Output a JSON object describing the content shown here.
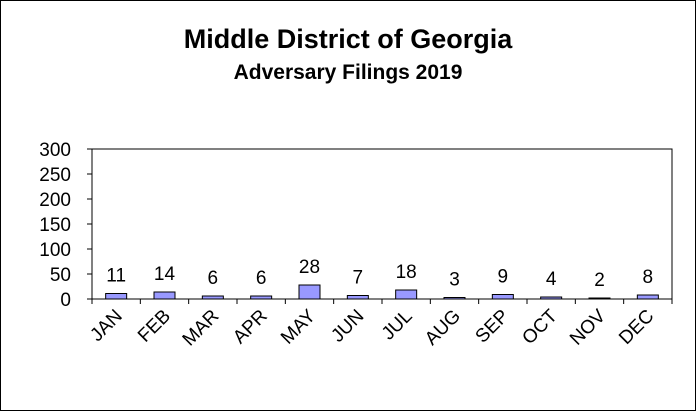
{
  "chart_data": {
    "type": "bar",
    "title": "Middle District of Georgia",
    "subtitle": "Adversary  Filings 2019",
    "categories": [
      "JAN",
      "FEB",
      "MAR",
      "APR",
      "MAY",
      "JUN",
      "JUL",
      "AUG",
      "SEP",
      "OCT",
      "NOV",
      "DEC"
    ],
    "values": [
      11,
      14,
      6,
      6,
      28,
      7,
      18,
      3,
      9,
      4,
      2,
      8
    ],
    "ylim": [
      0,
      300
    ],
    "yticks": [
      0,
      50,
      100,
      150,
      200,
      250,
      300
    ],
    "grid": false,
    "legend": "none",
    "data_labels": true,
    "bar_color": "#9999FF"
  }
}
